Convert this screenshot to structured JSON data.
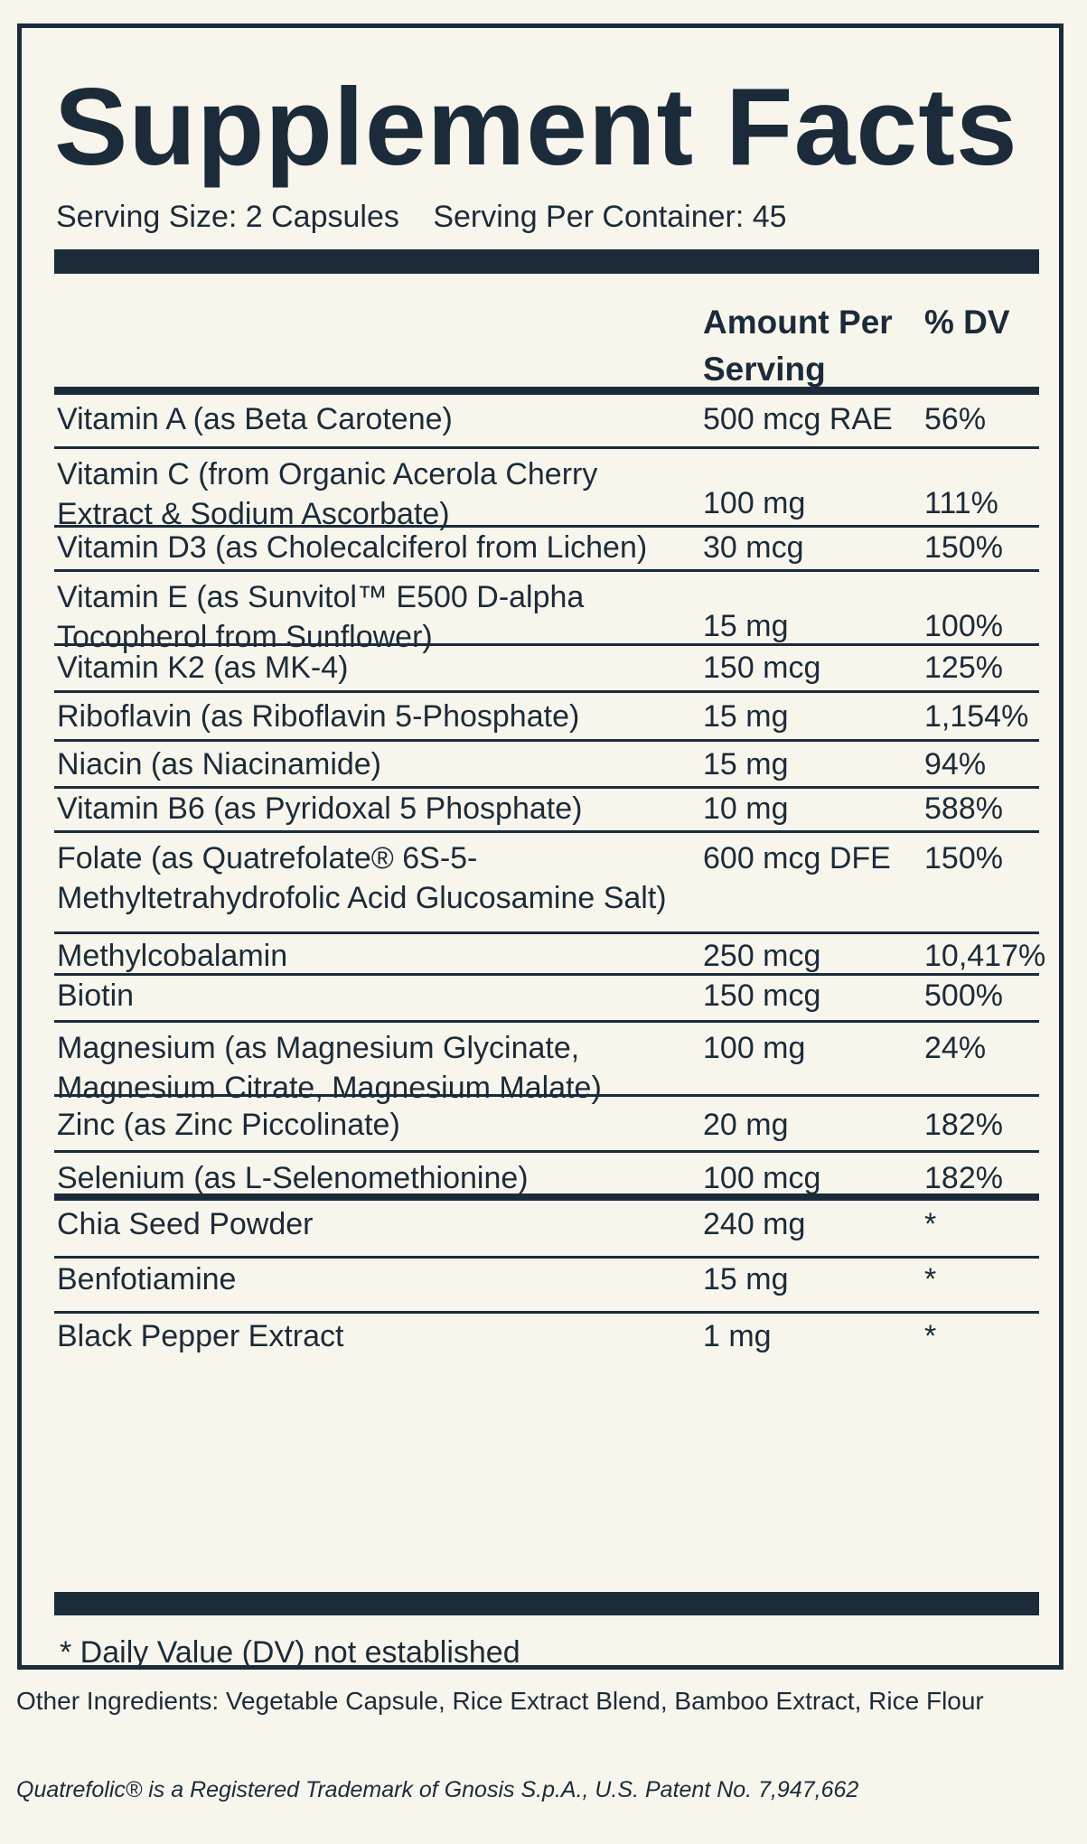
{
  "title": "Supplement Facts",
  "serving": {
    "size": "Serving Size: 2 Capsules",
    "per_container": "Serving Per Container: 45"
  },
  "table": {
    "header": {
      "amount": "Amount Per Serving",
      "dv": "% DV"
    },
    "rows": [
      {
        "name": "Vitamin A (as Beta Carotene)",
        "amount": "500 mcg RAE",
        "dv": "56%"
      },
      {
        "name": "Vitamin C (from Organic Acerola Cherry Extract & Sodium Ascorbate)",
        "amount": "100 mg",
        "dv": "111%"
      },
      {
        "name": "Vitamin D3 (as Cholecalciferol from Lichen)",
        "amount": "30 mcg",
        "dv": "150%"
      },
      {
        "name": "Vitamin E (as Sunvitol™ E500 D-alpha Tocopherol from Sunflower)",
        "amount": "15 mg",
        "dv": "100%"
      },
      {
        "name": "Vitamin K2 (as MK-4)",
        "amount": "150 mcg",
        "dv": "125%"
      },
      {
        "name": "Riboflavin (as Riboflavin 5-Phosphate)",
        "amount": "15 mg",
        "dv": "1,154%"
      },
      {
        "name": "Niacin (as Niacinamide)",
        "amount": "15 mg",
        "dv": "94%"
      },
      {
        "name": "Vitamin B6 (as Pyridoxal 5 Phosphate)",
        "amount": "10 mg",
        "dv": "588%"
      },
      {
        "name": "Folate (as Quatrefolate® 6S-5-Methyltetrahydrofolic Acid Glucosamine Salt)",
        "amount": "600 mcg DFE",
        "dv": "150%"
      },
      {
        "name": "Methylcobalamin",
        "amount": "250 mcg",
        "dv": "10,417%"
      },
      {
        "name": "Biotin",
        "amount": "150 mcg",
        "dv": "500%"
      },
      {
        "name": "Magnesium (as Magnesium Glycinate, Magnesium Citrate, Magnesium Malate)",
        "amount": "100 mg",
        "dv": "24%"
      },
      {
        "name": "Zinc (as Zinc Piccolinate)",
        "amount": "20 mg",
        "dv": "182%"
      },
      {
        "name": "Selenium (as L-Selenomethionine)",
        "amount": "100 mcg",
        "dv": "182%"
      },
      {
        "name": "Chia Seed Powder",
        "amount": "240 mg",
        "dv": "*"
      },
      {
        "name": "Benfotiamine",
        "amount": "15 mg",
        "dv": "*"
      },
      {
        "name": "Black Pepper Extract",
        "amount": "1 mg",
        "dv": "*"
      }
    ]
  },
  "footnote": "* Daily Value (DV) not established",
  "other_ingredients": "Other Ingredients: Vegetable Capsule, Rice Extract Blend, Bamboo Extract, Rice Flour",
  "trademark": "Quatrefolic® is a Registered Trademark of Gnosis S.p.A., U.S. Patent No. 7,947,662",
  "colors": {
    "background": "#f8f6ec",
    "ink": "#1b2b3a"
  }
}
